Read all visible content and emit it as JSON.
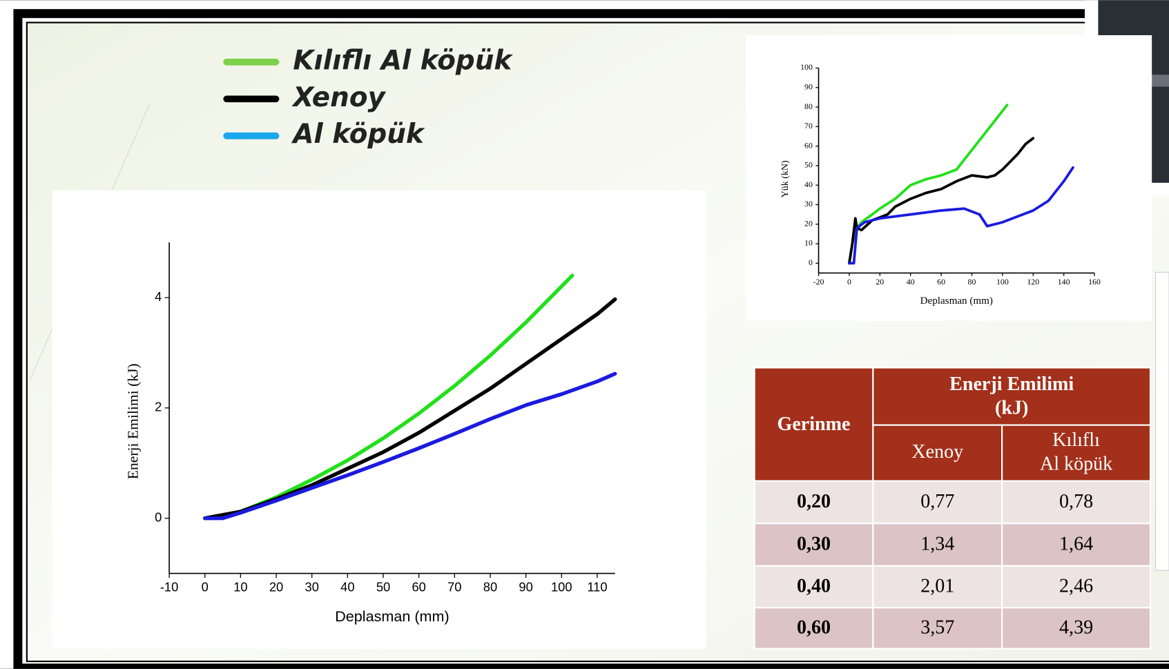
{
  "chart_data": [
    {
      "type": "line",
      "xlabel": "Deplasman (mm)",
      "ylabel": "Enerji Emilimi (kJ)",
      "xlim": [
        -10,
        115
      ],
      "ylim": [
        -1,
        5
      ],
      "xticks": [
        -10,
        0,
        10,
        20,
        30,
        40,
        50,
        60,
        70,
        80,
        90,
        100,
        110
      ],
      "yticks": [
        0,
        2,
        4
      ],
      "series": [
        {
          "name": "Kılıflı Al köpük",
          "color": "#22e01a",
          "legend_color": "#7ed14b",
          "x": [
            0,
            10,
            20,
            30,
            40,
            50,
            60,
            70,
            80,
            90,
            103
          ],
          "values": [
            0,
            0.12,
            0.38,
            0.7,
            1.05,
            1.45,
            1.9,
            2.4,
            2.95,
            3.55,
            4.4
          ]
        },
        {
          "name": "Xenoy",
          "color": "#000000",
          "legend_color": "#000000",
          "x": [
            0,
            10,
            20,
            30,
            40,
            50,
            60,
            70,
            80,
            90,
            100,
            110,
            115
          ],
          "values": [
            0,
            0.12,
            0.35,
            0.6,
            0.9,
            1.2,
            1.55,
            1.95,
            2.35,
            2.8,
            3.25,
            3.7,
            3.97
          ]
        },
        {
          "name": "Al köpük",
          "color": "#1a1ae0",
          "legend_color": "#1aa7ec",
          "x": [
            0,
            5,
            10,
            20,
            30,
            40,
            50,
            60,
            70,
            80,
            90,
            100,
            110,
            115
          ],
          "values": [
            0,
            0,
            0.1,
            0.32,
            0.55,
            0.78,
            1.02,
            1.27,
            1.53,
            1.8,
            2.05,
            2.25,
            2.48,
            2.62
          ]
        }
      ]
    },
    {
      "type": "line",
      "xlabel": "Deplasman (mm)",
      "ylabel": "Yük (kN)",
      "xlim": [
        -20,
        160
      ],
      "ylim": [
        -5,
        100
      ],
      "xticks": [
        -20,
        0,
        20,
        40,
        60,
        80,
        100,
        120,
        140,
        160
      ],
      "yticks": [
        0,
        10,
        20,
        30,
        40,
        50,
        60,
        70,
        80,
        90,
        100
      ],
      "series": [
        {
          "color": "#22e01a",
          "x": [
            0,
            2,
            5,
            8,
            15,
            20,
            30,
            40,
            50,
            60,
            70,
            80,
            90,
            100,
            103
          ],
          "values": [
            0,
            10,
            18,
            21,
            25,
            28,
            33,
            40,
            43,
            45,
            48,
            58,
            68,
            78,
            81
          ]
        },
        {
          "color": "#000000",
          "x": [
            0,
            2,
            4,
            5,
            8,
            15,
            25,
            30,
            40,
            50,
            60,
            70,
            80,
            90,
            95,
            100,
            110,
            115,
            120
          ],
          "values": [
            0,
            10,
            23,
            18,
            17,
            22,
            25,
            29,
            33,
            36,
            38,
            42,
            45,
            44,
            45,
            48,
            56,
            61,
            64
          ]
        },
        {
          "color": "#1a1ae0",
          "x": [
            0,
            3,
            5,
            10,
            20,
            40,
            60,
            75,
            85,
            90,
            100,
            110,
            120,
            130,
            140,
            146
          ],
          "values": [
            0,
            0,
            18,
            21,
            23,
            25,
            27,
            28,
            25,
            19,
            21,
            24,
            27,
            32,
            42,
            49
          ]
        }
      ]
    }
  ],
  "table": {
    "row_header": "Gerinme",
    "group_header": [
      "Enerji Emilimi",
      "(kJ)"
    ],
    "columns": [
      [
        "Xenoy"
      ],
      [
        "Kılıflı",
        "Al köpük"
      ]
    ],
    "rows": [
      [
        "0,20",
        "0,77",
        "0,78"
      ],
      [
        "0,30",
        "1,34",
        "1,64"
      ],
      [
        "0,40",
        "2,01",
        "2,46"
      ],
      [
        "0,60",
        "3,57",
        "4,39"
      ]
    ]
  }
}
